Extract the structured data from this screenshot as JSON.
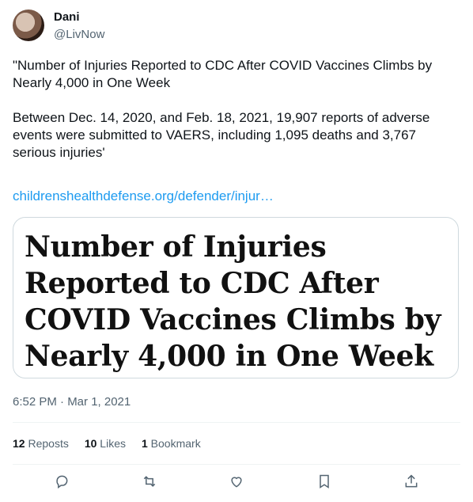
{
  "author": {
    "name": "Dani",
    "handle": "@LivNow"
  },
  "tweet": {
    "text": "\"Number of Injuries Reported to CDC After COVID Vaccines Climbs by Nearly 4,000 in One Week\n\nBetween Dec. 14, 2020, and Feb. 18, 2021, 19,907 reports of adverse events were submitted to VAERS, including 1,095 deaths and 3,767 serious injuries'",
    "link": "childrenshealthdefense.org/defender/injur…",
    "timestamp": "6:52 PM · Mar 1, 2021"
  },
  "card": {
    "headline": "Number of Injuries Reported to CDC After COVID Vaccines Climbs by Nearly 4,000 in One Week"
  },
  "stats": {
    "reposts_count": "12",
    "reposts_label": "Reposts",
    "likes_count": "10",
    "likes_label": "Likes",
    "bookmarks_count": "1",
    "bookmarks_label": "Bookmark"
  },
  "actions": {
    "icons": [
      "reply-icon",
      "repost-icon",
      "like-icon",
      "bookmark-icon",
      "share-icon"
    ]
  },
  "colors": {
    "link": "#1d9bf0",
    "secondary_text": "#536471",
    "border": "#cfd9de"
  }
}
